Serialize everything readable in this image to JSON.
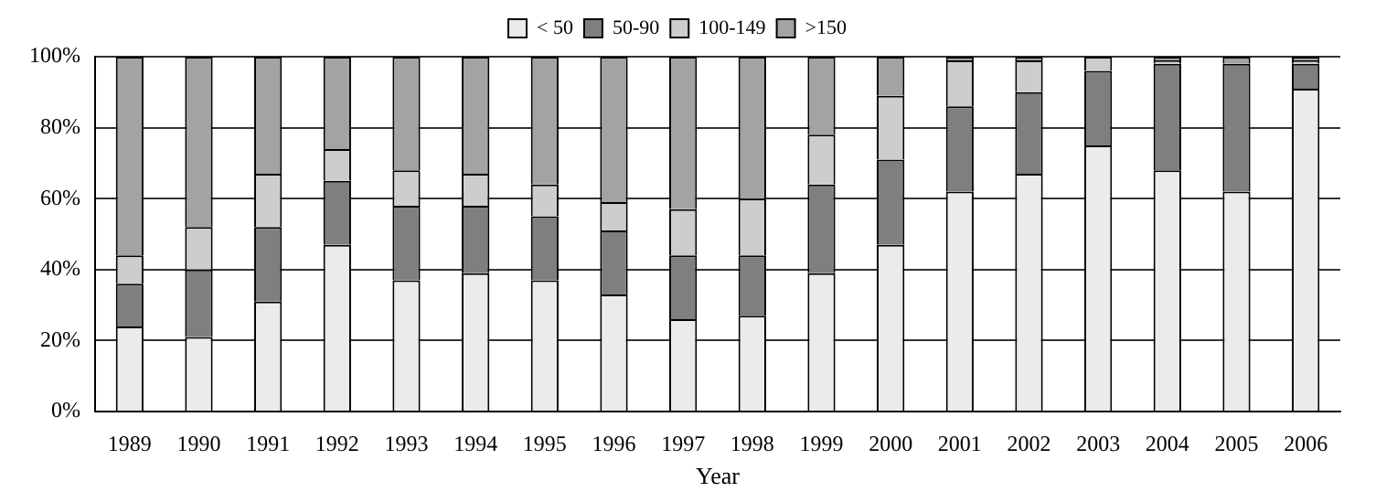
{
  "chart_data": {
    "type": "bar",
    "stacked": true,
    "xlabel": "Year",
    "categories": [
      "1989",
      "1990",
      "1991",
      "1992",
      "1993",
      "1994",
      "1995",
      "1996",
      "1997",
      "1998",
      "1999",
      "2000",
      "2001",
      "2002",
      "2003",
      "2004",
      "2005",
      "2006"
    ],
    "series": [
      {
        "name": "< 50",
        "color": "#ebebeb",
        "values": [
          24,
          21,
          31,
          47,
          37,
          39,
          37,
          33,
          26,
          27,
          39,
          47,
          62,
          67,
          75,
          68,
          62,
          91
        ]
      },
      {
        "name": "50-90",
        "color": "#7f7f7f",
        "values": [
          12,
          19,
          21,
          18,
          21,
          19,
          18,
          18,
          18,
          17,
          25,
          24,
          24,
          23,
          21,
          30,
          36,
          7
        ]
      },
      {
        "name": "100-149",
        "color": "#cdcdcd",
        "values": [
          8,
          12,
          15,
          9,
          10,
          9,
          9,
          8,
          13,
          16,
          14,
          18,
          13,
          9,
          4,
          1,
          0,
          1
        ]
      },
      {
        "name": ">150",
        "color": "#a3a3a3",
        "values": [
          56,
          48,
          33,
          26,
          32,
          33,
          36,
          41,
          43,
          40,
          22,
          11,
          1,
          1,
          0,
          1,
          2,
          1
        ]
      }
    ],
    "ylim": [
      0,
      100
    ],
    "yticks": [
      {
        "value": 0,
        "label": "0%"
      },
      {
        "value": 20,
        "label": "20%"
      },
      {
        "value": 40,
        "label": "40%"
      },
      {
        "value": 60,
        "label": "60%"
      },
      {
        "value": 80,
        "label": "80%"
      },
      {
        "value": 100,
        "label": "100%"
      }
    ],
    "grid": "y",
    "legend": "top"
  }
}
